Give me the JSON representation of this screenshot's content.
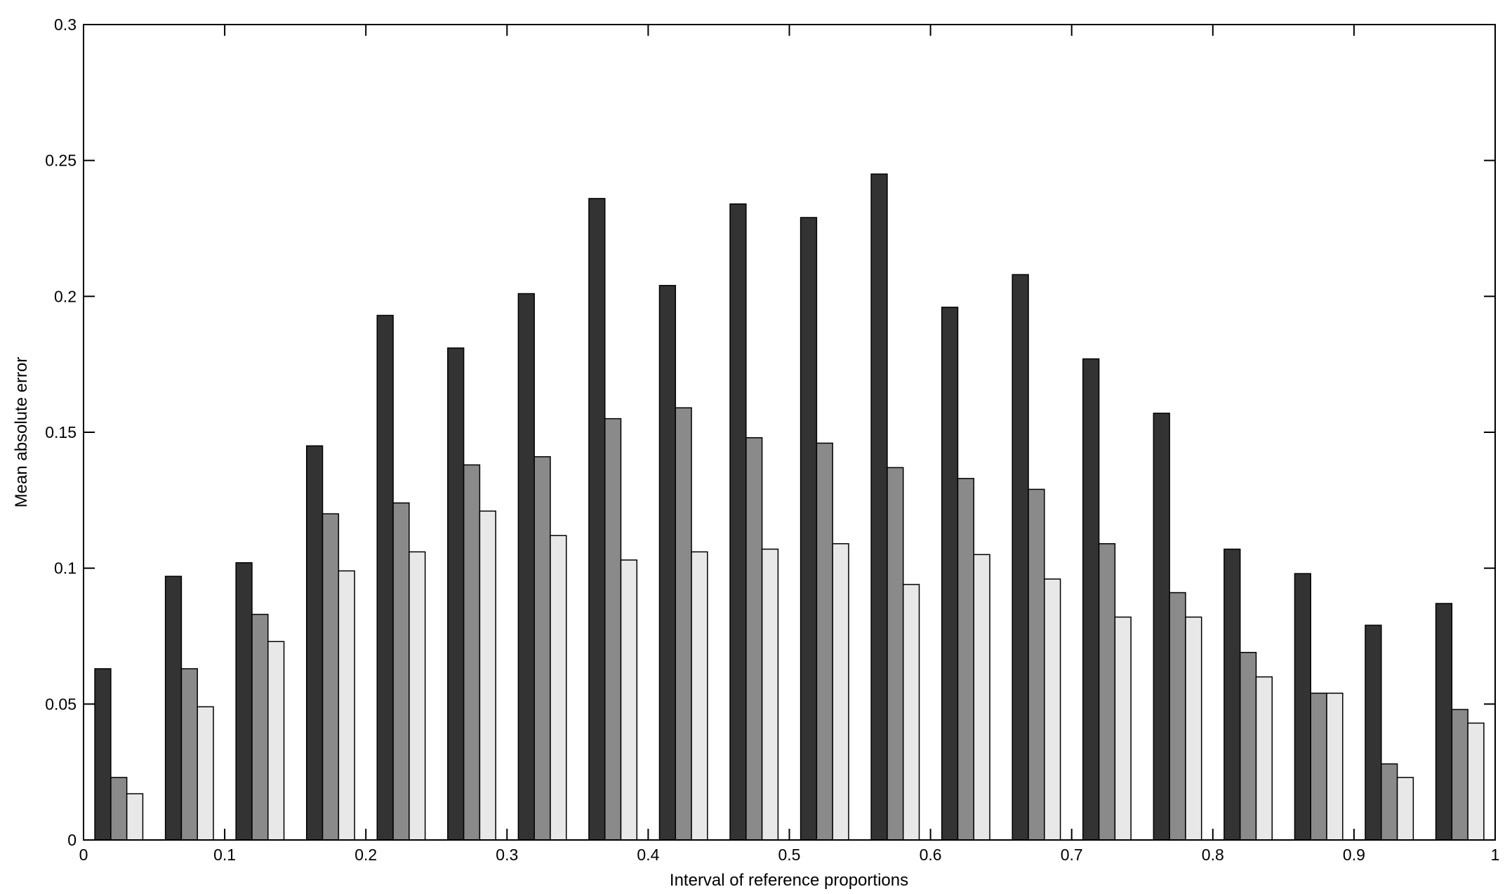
{
  "chart_data": {
    "type": "bar",
    "xlabel": "Interval of reference proportions",
    "ylabel": "Mean absolute error",
    "xlim": [
      0,
      1
    ],
    "ylim": [
      0,
      0.3
    ],
    "xticks": [
      0,
      0.1,
      0.2,
      0.3,
      0.4,
      0.5,
      0.6,
      0.7,
      0.8,
      0.9,
      1
    ],
    "xtick_labels": [
      "0",
      "0.1",
      "0.2",
      "0.3",
      "0.4",
      "0.5",
      "0.6",
      "0.7",
      "0.8",
      "0.9",
      "1"
    ],
    "yticks": [
      0,
      0.05,
      0.1,
      0.15,
      0.2,
      0.25,
      0.3
    ],
    "ytick_labels": [
      "0",
      "0.05",
      "0.1",
      "0.15",
      "0.2",
      "0.25",
      "0.3"
    ],
    "grid": false,
    "x": [
      0.025,
      0.075,
      0.125,
      0.175,
      0.225,
      0.275,
      0.325,
      0.375,
      0.425,
      0.475,
      0.525,
      0.575,
      0.625,
      0.675,
      0.725,
      0.775,
      0.825,
      0.875,
      0.925,
      0.975
    ],
    "series": [
      {
        "color": "#333333",
        "values": [
          0.063,
          0.097,
          0.102,
          0.145,
          0.193,
          0.181,
          0.201,
          0.236,
          0.204,
          0.234,
          0.229,
          0.245,
          0.196,
          0.208,
          0.177,
          0.157,
          0.107,
          0.098,
          0.079,
          0.087
        ]
      },
      {
        "color": "#8a8a8a",
        "values": [
          0.023,
          0.063,
          0.083,
          0.12,
          0.124,
          0.138,
          0.141,
          0.155,
          0.159,
          0.148,
          0.146,
          0.137,
          0.133,
          0.129,
          0.109,
          0.091,
          0.069,
          0.054,
          0.028,
          0.048
        ]
      },
      {
        "color": "#e8e8e8",
        "values": [
          0.017,
          0.049,
          0.073,
          0.099,
          0.106,
          0.121,
          0.112,
          0.103,
          0.106,
          0.107,
          0.109,
          0.094,
          0.105,
          0.096,
          0.082,
          0.082,
          0.06,
          0.054,
          0.023,
          0.043
        ]
      }
    ]
  }
}
